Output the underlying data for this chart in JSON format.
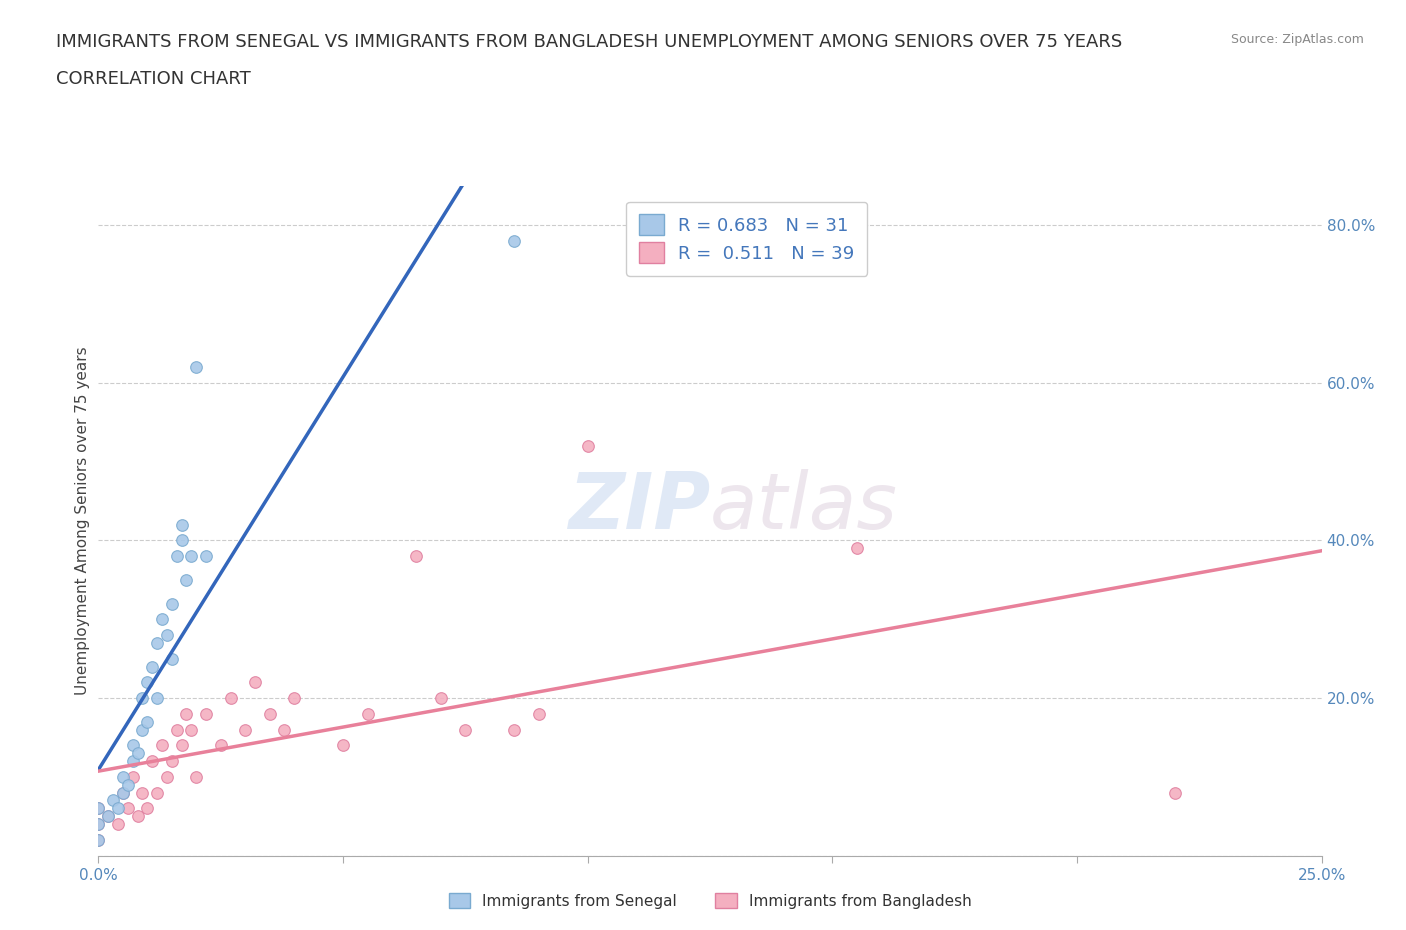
{
  "title_line1": "IMMIGRANTS FROM SENEGAL VS IMMIGRANTS FROM BANGLADESH UNEMPLOYMENT AMONG SENIORS OVER 75 YEARS",
  "title_line2": "CORRELATION CHART",
  "source": "Source: ZipAtlas.com",
  "ylabel": "Unemployment Among Seniors over 75 years",
  "xlim": [
    0.0,
    0.25
  ],
  "ylim": [
    0.0,
    0.85
  ],
  "xticks": [
    0.0,
    0.05,
    0.1,
    0.15,
    0.2,
    0.25
  ],
  "xticklabels": [
    "0.0%",
    "",
    "",
    "",
    "",
    "25.0%"
  ],
  "ytick_vals": [
    0.0,
    0.2,
    0.4,
    0.6,
    0.8
  ],
  "yticklabels_right": [
    "",
    "20.0%",
    "40.0%",
    "60.0%",
    "80.0%"
  ],
  "senegal_color": "#a8c8e8",
  "senegal_edge": "#7aaad0",
  "bangladesh_color": "#f4afc0",
  "bangladesh_edge": "#e080a0",
  "senegal_line_color": "#3366bb",
  "bangladesh_line_color": "#e8809a",
  "senegal_R": 0.683,
  "senegal_N": 31,
  "bangladesh_R": 0.511,
  "bangladesh_N": 39,
  "watermark": "ZIPatlas",
  "background_color": "#ffffff",
  "grid_color": "#cccccc",
  "senegal_scatter_x": [
    0.0,
    0.0,
    0.0,
    0.002,
    0.003,
    0.004,
    0.005,
    0.005,
    0.006,
    0.007,
    0.007,
    0.008,
    0.009,
    0.009,
    0.01,
    0.01,
    0.011,
    0.012,
    0.012,
    0.013,
    0.014,
    0.015,
    0.015,
    0.016,
    0.017,
    0.017,
    0.018,
    0.019,
    0.02,
    0.022,
    0.085
  ],
  "senegal_scatter_y": [
    0.02,
    0.04,
    0.06,
    0.05,
    0.07,
    0.06,
    0.08,
    0.1,
    0.09,
    0.12,
    0.14,
    0.13,
    0.16,
    0.2,
    0.17,
    0.22,
    0.24,
    0.2,
    0.27,
    0.3,
    0.28,
    0.25,
    0.32,
    0.38,
    0.4,
    0.42,
    0.35,
    0.38,
    0.62,
    0.38,
    0.78
  ],
  "bangladesh_scatter_x": [
    0.0,
    0.0,
    0.0,
    0.002,
    0.004,
    0.005,
    0.006,
    0.007,
    0.008,
    0.009,
    0.01,
    0.011,
    0.012,
    0.013,
    0.014,
    0.015,
    0.016,
    0.017,
    0.018,
    0.019,
    0.02,
    0.022,
    0.025,
    0.027,
    0.03,
    0.032,
    0.035,
    0.038,
    0.04,
    0.05,
    0.055,
    0.065,
    0.07,
    0.075,
    0.085,
    0.09,
    0.1,
    0.155,
    0.22
  ],
  "bangladesh_scatter_y": [
    0.02,
    0.04,
    0.06,
    0.05,
    0.04,
    0.08,
    0.06,
    0.1,
    0.05,
    0.08,
    0.06,
    0.12,
    0.08,
    0.14,
    0.1,
    0.12,
    0.16,
    0.14,
    0.18,
    0.16,
    0.1,
    0.18,
    0.14,
    0.2,
    0.16,
    0.22,
    0.18,
    0.16,
    0.2,
    0.14,
    0.18,
    0.38,
    0.2,
    0.16,
    0.16,
    0.18,
    0.52,
    0.39,
    0.08
  ],
  "title_fontsize": 13,
  "axis_label_fontsize": 11,
  "tick_fontsize": 11,
  "legend_fontsize": 13,
  "marker_size": 70
}
